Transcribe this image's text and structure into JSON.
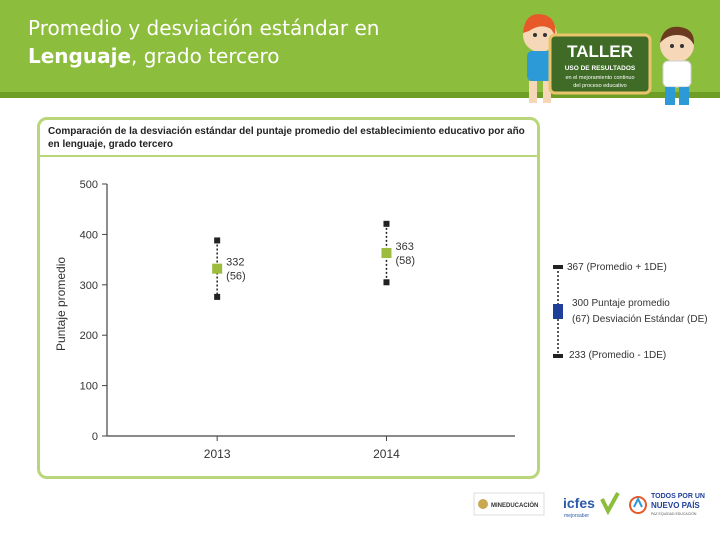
{
  "slide": {
    "title_line1": "Promedio y desviación estándar en",
    "title_line2_bold": "Lenguaje",
    "title_line2_rest": ", grado tercero",
    "banner": {
      "word": "TALLER",
      "line1": "USO DE RESULTADOS",
      "line2": "en el mejoramiento continuo",
      "line3": "del proceso educativo"
    }
  },
  "panel": {
    "title": "Comparación de la desviación estándar del puntaje promedio del establecimiento educativo por año en lenguaje, grado tercero"
  },
  "chart_data": {
    "type": "scatter",
    "title": "Comparación de la desviación estándar del puntaje promedio del establecimiento educativo por año en lenguaje, grado tercero",
    "xlabel": "",
    "ylabel": "Puntaje promedio",
    "categories": [
      "2013",
      "2014"
    ],
    "ylim": [
      0,
      500
    ],
    "yticks": [
      "0",
      "100",
      "200",
      "300",
      "400",
      "500"
    ],
    "points": [
      {
        "x": "2013",
        "mean": 332,
        "sd": 56,
        "label_mean": "332",
        "label_sd": "(56)"
      },
      {
        "x": "2014",
        "mean": 363,
        "sd": 58,
        "label_mean": "363",
        "label_sd": "(58)"
      }
    ],
    "colors": {
      "marker": "#9dbb3c",
      "whisker": "#222222",
      "axis": "#444444"
    }
  },
  "legend": {
    "upper": "367 (Promedio + 1DE)",
    "mean": "300 Puntaje promedio",
    "sd": "(67) Desviación Estándar (DE)",
    "lower": "233 (Promedio - 1DE)",
    "marker_color": "#1f3f9a"
  },
  "footer": {
    "ministry": "MINEDUCACIÓN",
    "icfes": "icfes",
    "icfes_sub": "mejorsaber",
    "gov1": "TODOS POR UN",
    "gov2": "NUEVO PAÍS",
    "gov3": "PAZ  EQUIDAD  EDUCACIÓN"
  }
}
